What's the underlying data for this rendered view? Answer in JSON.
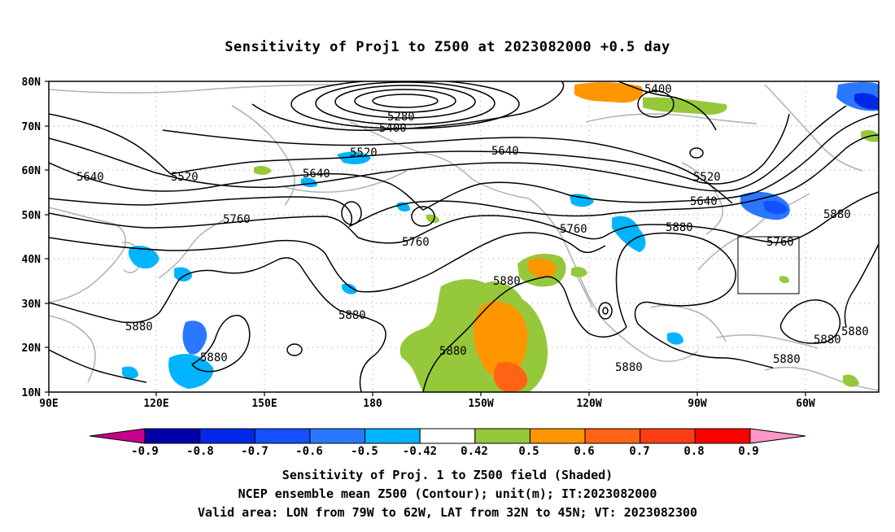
{
  "title": "Sensitivity of Proj1 to Z500 at 2023082000 +0.5 day",
  "map": {
    "lon_labels": [
      "90E",
      "120E",
      "150E",
      "180",
      "150W",
      "120W",
      "90W",
      "60W"
    ],
    "lat_labels": [
      "80N",
      "70N",
      "60N",
      "50N",
      "40N",
      "30N",
      "20N",
      "10N"
    ],
    "contour_labels": [
      {
        "text": "5280"
      },
      {
        "text": "5400"
      },
      {
        "text": "5400"
      },
      {
        "text": "5520"
      },
      {
        "text": "5520"
      },
      {
        "text": "5520"
      },
      {
        "text": "5640"
      },
      {
        "text": "5640"
      },
      {
        "text": "5640"
      },
      {
        "text": "5640"
      },
      {
        "text": "5760"
      },
      {
        "text": "5760"
      },
      {
        "text": "5760"
      },
      {
        "text": "5760"
      },
      {
        "text": "5880"
      },
      {
        "text": "5880"
      },
      {
        "text": "5880"
      },
      {
        "text": "5880"
      },
      {
        "text": "5880"
      },
      {
        "text": "5880"
      },
      {
        "text": "5880"
      },
      {
        "text": "5880"
      },
      {
        "text": "5880"
      },
      {
        "text": "5880"
      },
      {
        "text": "5880"
      }
    ],
    "valid_box": {
      "lon_from": "79W",
      "lon_to": "62W",
      "lat_from": "32N",
      "lat_to": "45N"
    }
  },
  "colorbar": {
    "labels": [
      "-0.9",
      "-0.8",
      "-0.7",
      "-0.6",
      "-0.5",
      "-0.42",
      "0.42",
      "0.5",
      "0.6",
      "0.7",
      "0.8",
      "0.9"
    ],
    "colors": [
      "#0000a8",
      "#0028e6",
      "#1450ff",
      "#2a78ff",
      "#00b4ff",
      "#ffffff",
      "#96c83c",
      "#ff9600",
      "#ff6414",
      "#ff3c14",
      "#ff0000"
    ],
    "low_end_color": "#c8008c",
    "high_end_color": "#ff96c8"
  },
  "captions": [
    "Sensitivity of Proj. 1 to Z500 field (Shaded)",
    "NCEP ensemble mean Z500 (Contour); unit(m); IT:2023082000",
    "Valid area: LON from 79W to 62W, LAT from 32N to 45N; VT: 2023082300"
  ]
}
